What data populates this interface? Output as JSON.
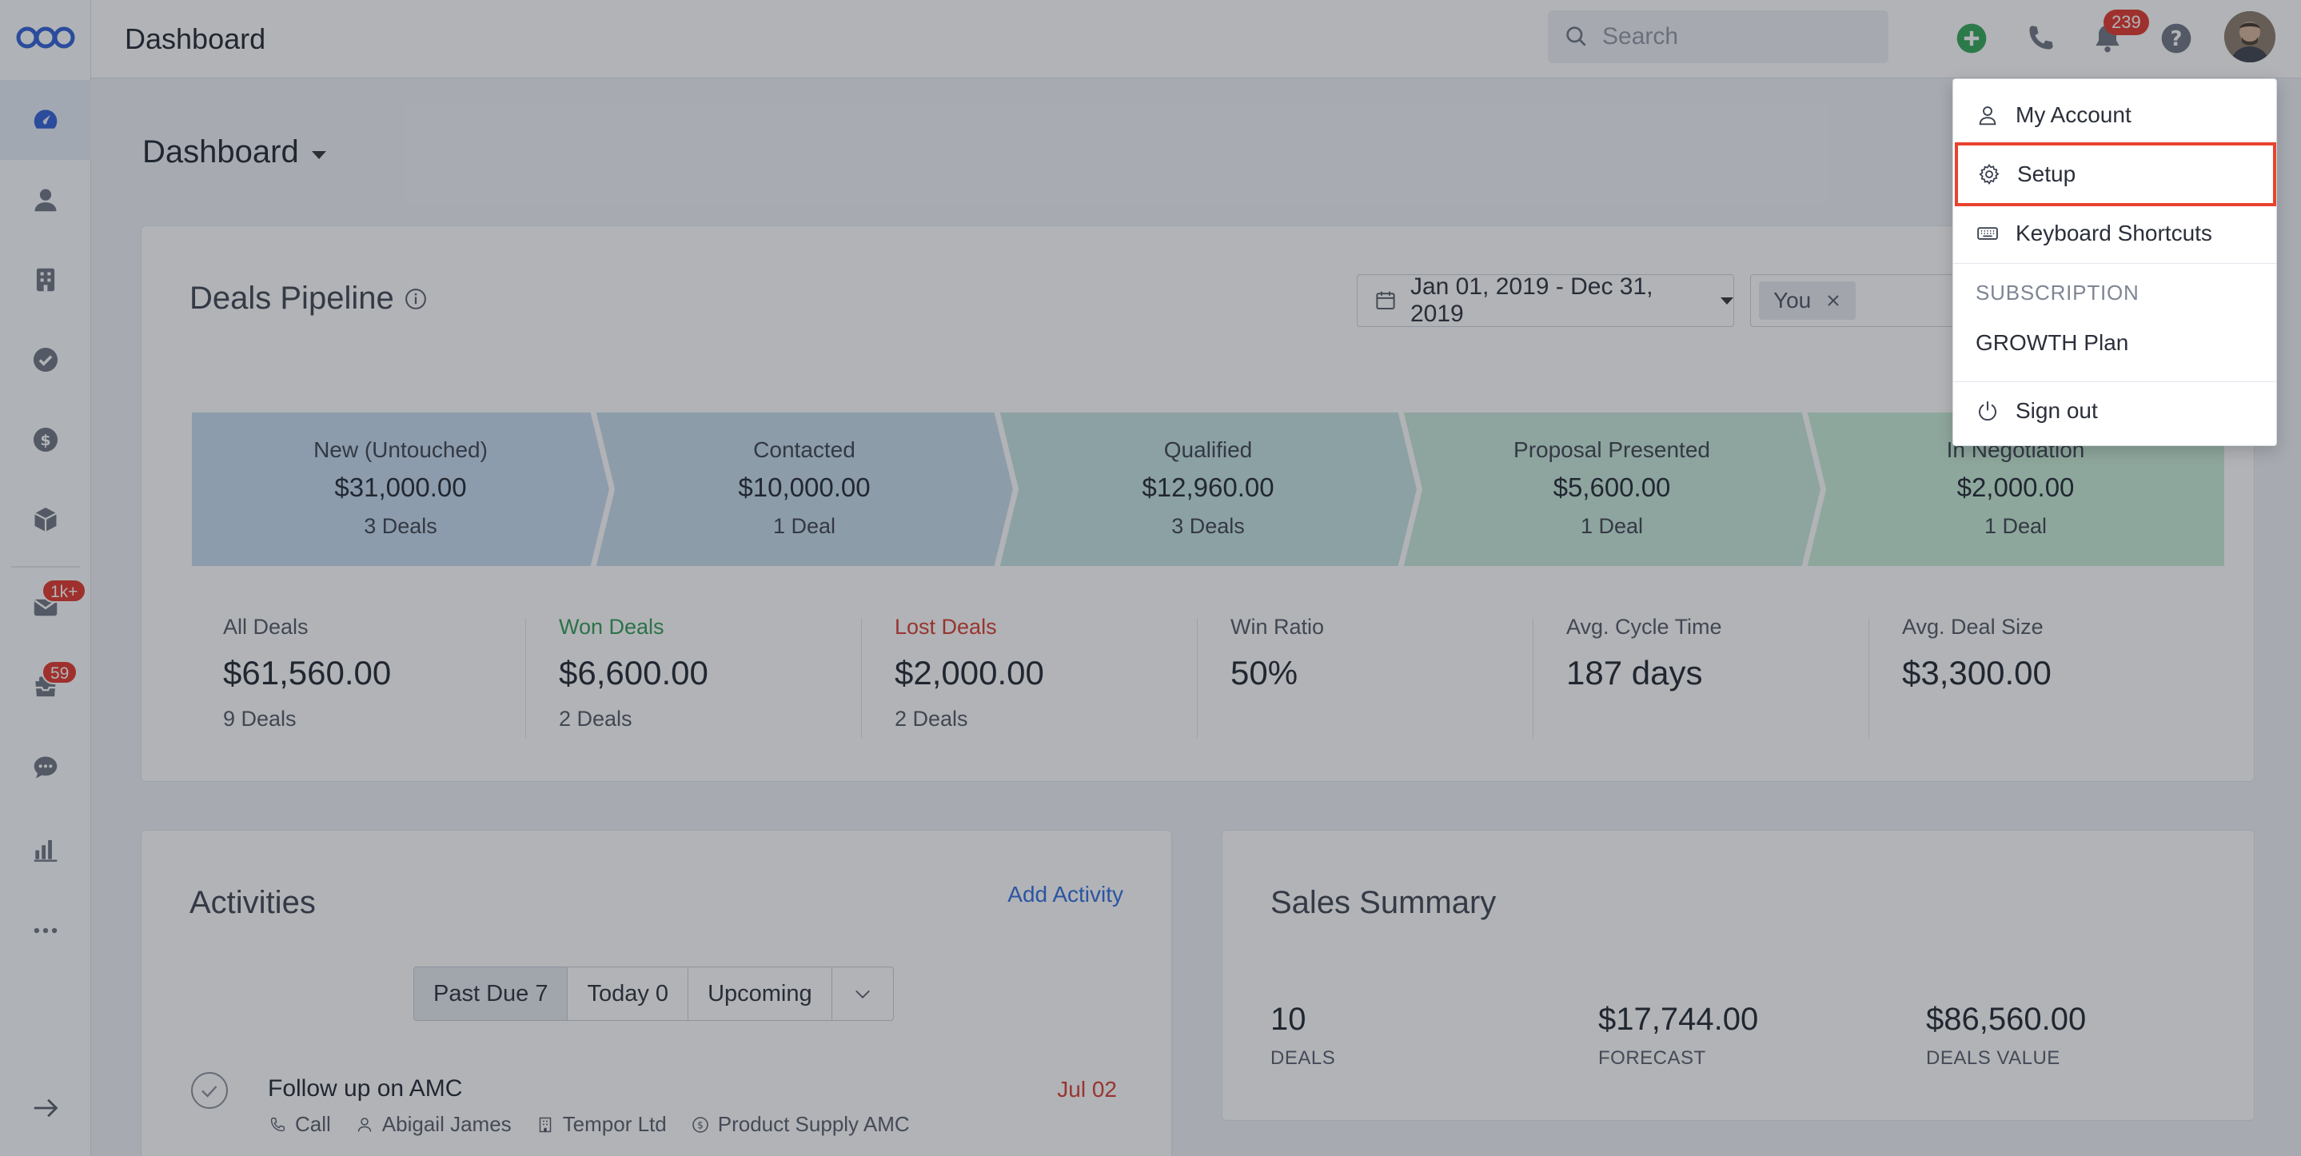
{
  "topbar": {
    "title": "Dashboard",
    "search_placeholder": "Search",
    "notification_count": "239"
  },
  "sidebar": {
    "items": [
      {
        "icon": "speedometer-icon",
        "active": true
      },
      {
        "icon": "person-icon"
      },
      {
        "icon": "building-icon"
      },
      {
        "icon": "check-circle-icon"
      },
      {
        "icon": "dollar-icon"
      },
      {
        "icon": "box-icon"
      },
      {
        "icon": "mail-icon",
        "badge": "1k+"
      },
      {
        "icon": "inbox-icon",
        "badge": "59"
      },
      {
        "icon": "chat-icon"
      },
      {
        "icon": "bar-chart-icon"
      },
      {
        "icon": "more-icon"
      }
    ],
    "collapse_icon": "arrow-right-icon"
  },
  "page": {
    "title": "Dashboard"
  },
  "pipeline": {
    "title": "Deals Pipeline",
    "date_range": "Jan 01, 2019 - Dec 31, 2019",
    "user_filter": "You",
    "stages": [
      {
        "name": "New (Untouched)",
        "amount": "$31,000.00",
        "count": "3 Deals",
        "color": "#c7dbf0"
      },
      {
        "name": "Contacted",
        "amount": "$10,000.00",
        "count": "1 Deal",
        "color": "#c6dceb"
      },
      {
        "name": "Qualified",
        "amount": "$12,960.00",
        "count": "3 Deals",
        "color": "#c6e3e3"
      },
      {
        "name": "Proposal Presented",
        "amount": "$5,600.00",
        "count": "1 Deal",
        "color": "#c8e8dc"
      },
      {
        "name": "In Negotiation",
        "amount": "$2,000.00",
        "count": "1 Deal",
        "color": "#c9edd6"
      }
    ],
    "stats": [
      {
        "label": "All Deals",
        "value": "$61,560.00",
        "sub": "9 Deals",
        "color": "#505765"
      },
      {
        "label": "Won Deals",
        "value": "$6,600.00",
        "sub": "2 Deals",
        "color": "#2f9a55"
      },
      {
        "label": "Lost Deals",
        "value": "$2,000.00",
        "sub": "2 Deals",
        "color": "#d8392e"
      },
      {
        "label": "Win Ratio",
        "value": "50%",
        "sub": "",
        "color": "#505765"
      },
      {
        "label": "Avg. Cycle Time",
        "value": "187 days",
        "sub": "",
        "color": "#505765"
      },
      {
        "label": "Avg. Deal Size",
        "value": "$3,300.00",
        "sub": "",
        "color": "#505765"
      }
    ]
  },
  "activities": {
    "title": "Activities",
    "add_label": "Add Activity",
    "tabs": [
      "Past Due 7",
      "Today 0",
      "Upcoming"
    ],
    "row": {
      "title": "Follow up on AMC",
      "date": "Jul 02",
      "type": "Call",
      "contact": "Abigail James",
      "company": "Tempor Ltd",
      "deal": "Product Supply AMC"
    }
  },
  "sales_summary": {
    "title": "Sales Summary",
    "items": [
      {
        "value": "10",
        "label": "DEALS"
      },
      {
        "value": "$17,744.00",
        "label": "FORECAST"
      },
      {
        "value": "$86,560.00",
        "label": "DEALS VALUE"
      }
    ]
  },
  "user_menu": {
    "my_account": "My Account",
    "setup": "Setup",
    "keyboard_shortcuts": "Keyboard Shortcuts",
    "subscription_heading": "SUBSCRIPTION",
    "plan": "GROWTH Plan",
    "sign_out": "Sign out",
    "highlight_color": "#e8432f"
  }
}
